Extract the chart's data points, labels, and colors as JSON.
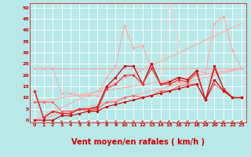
{
  "bg_color": "#b8e8e8",
  "grid_color": "#ffffff",
  "xlabel": "Vent moyen/en rafales ( km/h )",
  "xlabel_color": "#cc0000",
  "xlabel_fontsize": 7,
  "ylim": [
    -1,
    52
  ],
  "xlim": [
    -0.5,
    23.5
  ],
  "ref_line1_y": [
    23,
    23
  ],
  "ref_line1_x": [
    0,
    23
  ],
  "ref_line1_color": "#ffaaaa",
  "ref_line2_x": [
    0,
    23
  ],
  "ref_line2_y": [
    8,
    23
  ],
  "ref_line2_color": "#ffaaaa",
  "ref_line3_x": [
    0,
    23
  ],
  "ref_line3_y": [
    0,
    23
  ],
  "ref_line3_color": "#ffaaaa",
  "ref_line4_x": [
    0,
    23
  ],
  "ref_line4_y": [
    0,
    43
  ],
  "ref_line4_color": "#ffaaaa",
  "jagged1_x": [
    0,
    1,
    2,
    3,
    4,
    5,
    6,
    7,
    8,
    9,
    10,
    11,
    12,
    13,
    14,
    15,
    16,
    17,
    18,
    19,
    20,
    21,
    22,
    23
  ],
  "jagged1_y": [
    23,
    23,
    23,
    12,
    12,
    11,
    11,
    11,
    19,
    24,
    42,
    32,
    33,
    23,
    16,
    16,
    17,
    17,
    22,
    21,
    43,
    46,
    31,
    23
  ],
  "jagged1_color": "#ffaaaa",
  "jagged2_x": [
    0,
    1,
    2,
    3,
    4,
    5,
    6,
    7,
    8,
    9,
    10,
    11,
    12,
    13,
    14,
    15,
    16,
    17,
    18,
    19,
    20,
    21,
    22,
    23
  ],
  "jagged2_y": [
    13,
    1,
    4,
    3,
    3,
    5,
    5,
    6,
    15,
    19,
    24,
    24,
    16,
    25,
    16,
    17,
    19,
    18,
    22,
    9,
    24,
    14,
    10,
    10
  ],
  "jagged2_color": "#cc0000",
  "jagged3_x": [
    0,
    1,
    2,
    3,
    4,
    5,
    6,
    7,
    8,
    9,
    10,
    11,
    12,
    13,
    14,
    15,
    16,
    17,
    18,
    19,
    20,
    21,
    22,
    23
  ],
  "jagged3_y": [
    13,
    1,
    4,
    3,
    3,
    5,
    5,
    5,
    14,
    16,
    20,
    20,
    16,
    23,
    16,
    16,
    18,
    17,
    21,
    9,
    23,
    14,
    10,
    10
  ],
  "jagged3_color": "#ee3333",
  "jagged4_x": [
    0,
    1,
    2,
    3,
    4,
    5,
    6,
    7,
    8,
    9,
    10,
    11,
    12,
    13,
    14,
    15,
    16,
    17,
    18,
    19,
    20,
    21,
    22,
    23
  ],
  "jagged4_y": [
    8,
    8,
    8,
    4,
    4,
    5,
    4,
    5,
    8,
    8,
    10,
    11,
    10,
    11,
    13,
    13,
    15,
    16,
    16,
    9,
    16,
    13,
    10,
    10
  ],
  "jagged4_color": "#ff6666",
  "jagged5_x": [
    0,
    1,
    2,
    3,
    4,
    5,
    6,
    7,
    8,
    9,
    10,
    11,
    12,
    13,
    14,
    15,
    16,
    17,
    18,
    19,
    20,
    21,
    22,
    23
  ],
  "jagged5_y": [
    0,
    0,
    0,
    2,
    2,
    3,
    4,
    4,
    6,
    7,
    8,
    9,
    10,
    11,
    12,
    13,
    14,
    15,
    16,
    9,
    18,
    13,
    10,
    10
  ],
  "jagged5_color": "#cc0000",
  "peak_x": [
    10,
    11,
    12,
    13,
    14,
    15,
    16,
    17,
    18,
    19,
    20,
    21,
    22,
    23
  ],
  "peak_y": [
    42,
    32,
    33,
    23,
    16,
    51,
    35,
    18,
    22,
    21,
    43,
    46,
    31,
    23
  ],
  "peak_color": "#ffcccc",
  "yticks": [
    0,
    5,
    10,
    15,
    20,
    25,
    30,
    35,
    40,
    45,
    50
  ],
  "xticks": [
    0,
    1,
    2,
    3,
    4,
    5,
    6,
    7,
    8,
    9,
    10,
    11,
    12,
    13,
    14,
    15,
    16,
    17,
    18,
    19,
    20,
    21,
    22,
    23
  ]
}
